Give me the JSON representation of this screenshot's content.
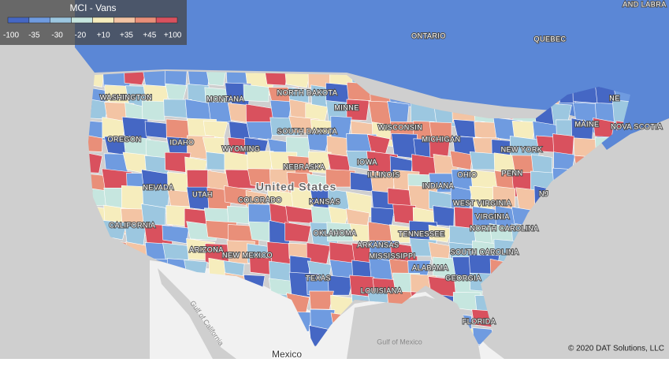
{
  "legend": {
    "title": "MCI - Vans",
    "ticks": [
      "-100",
      "-35",
      "-30",
      "-20",
      "+10",
      "+35",
      "+45",
      "+100"
    ],
    "colors": [
      "#4567c4",
      "#6f9be0",
      "#9cc7e0",
      "#c6e6df",
      "#f6edbd",
      "#f3c4a4",
      "#e98f79",
      "#d9515e"
    ]
  },
  "map_labels": [
    "ONTARIO",
    "QUEBEC",
    "AND LABRA",
    "MONTANA",
    "NORTH DAKOTA",
    "MINNE",
    "WASHINGTON",
    "OREGON",
    "IDAHO",
    "WYOMING",
    "SOUTH DAKOTA",
    "WISCONSIN",
    "MICHIGAN",
    "NEW YORK",
    "NE",
    "MAINE",
    "NOVA SCOTIA",
    "NEBRASKA",
    "IOWA",
    "ILLINOIS",
    "NEVADA",
    "UTAH",
    "COLORADO",
    "KANSAS",
    "INDIANA",
    "OHIO",
    "PENN",
    "NJ",
    "WEST VIRGINIA",
    "VIRGINIA",
    "CALIFORNIA",
    "OKLAHOMA",
    "TENNESSEE",
    "NORTH CAROLINA",
    "ARIZONA",
    "NEW MEXICO",
    "ARKANSAS",
    "MISSISSIPPI",
    "SOUTH CAROLINA",
    "ALABAMA",
    "GEORGIA",
    "TEXAS",
    "LOUISIANA",
    "FLORIDA"
  ],
  "country_label": "United States",
  "mexico_label": "Mexico",
  "gulf_mexico": "Gulf of Mexico",
  "gulf_california": "Gulf of California",
  "attribution": "© 2020 DAT Solutions, LLC"
}
